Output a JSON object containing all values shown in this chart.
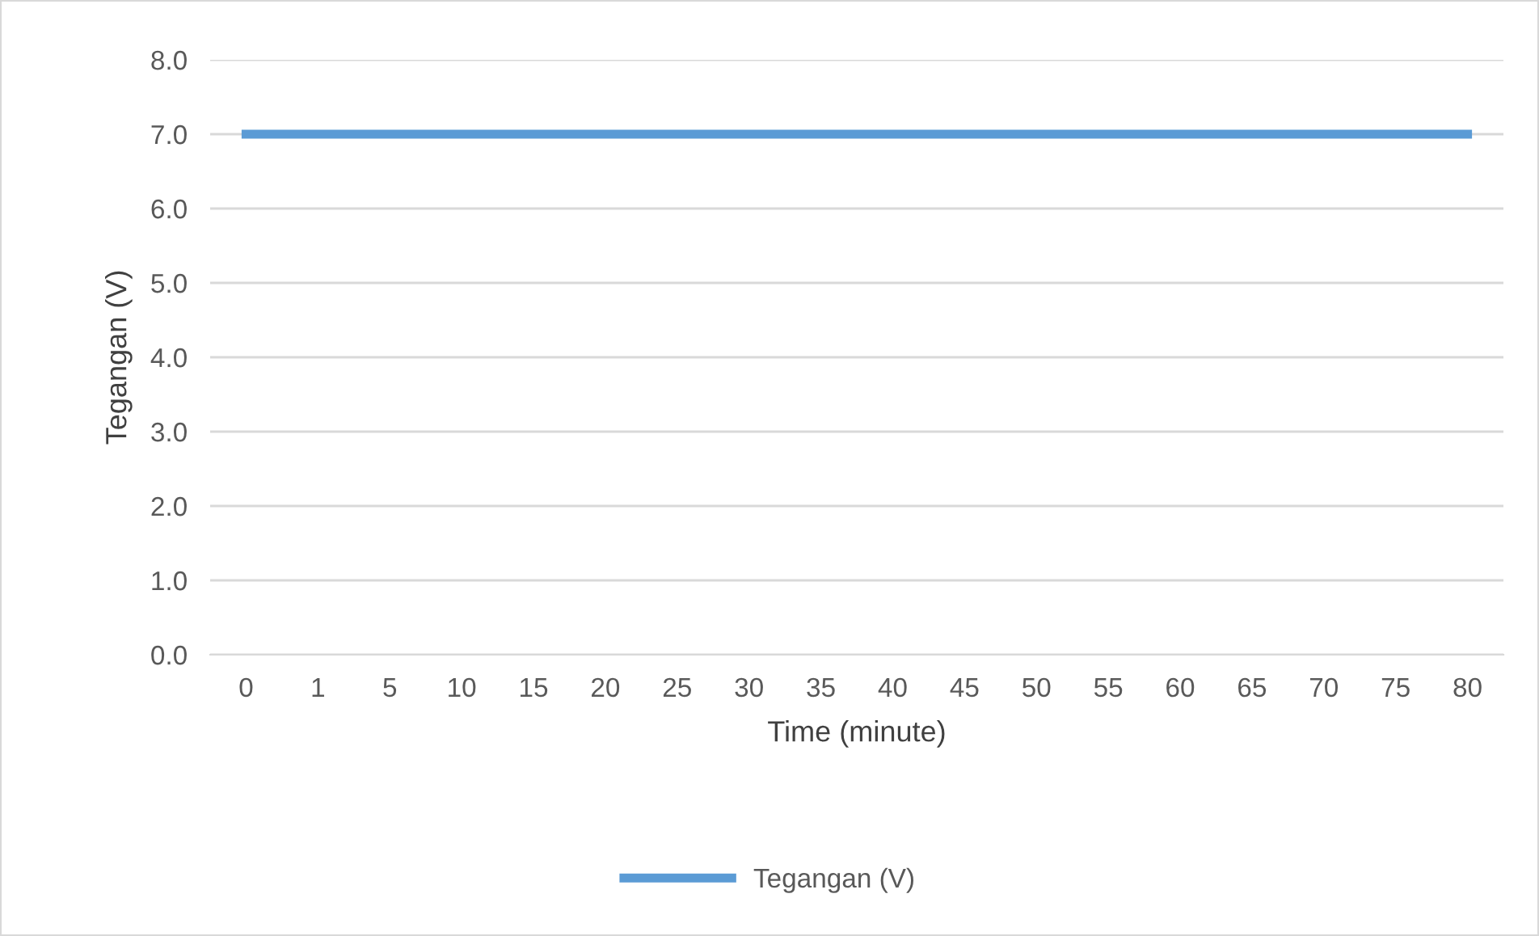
{
  "chart_data": {
    "type": "line",
    "xlabel": "Time (minute)",
    "ylabel": "Tegangan (V)",
    "categories": [
      "0",
      "1",
      "5",
      "10",
      "15",
      "20",
      "25",
      "30",
      "35",
      "40",
      "45",
      "50",
      "55",
      "60",
      "65",
      "70",
      "75",
      "80"
    ],
    "series": [
      {
        "name": "Tegangan (V)",
        "color": "#5b9bd5",
        "values": [
          7.0,
          7.0,
          7.0,
          7.0,
          7.0,
          7.0,
          7.0,
          7.0,
          7.0,
          7.0,
          7.0,
          7.0,
          7.0,
          7.0,
          7.0,
          7.0,
          7.0,
          7.0
        ]
      }
    ],
    "ylim": [
      0,
      8
    ],
    "yticks": [
      {
        "value": 0,
        "label": "0.0"
      },
      {
        "value": 1,
        "label": "1.0"
      },
      {
        "value": 2,
        "label": "2.0"
      },
      {
        "value": 3,
        "label": "3.0"
      },
      {
        "value": 4,
        "label": "4.0"
      },
      {
        "value": 5,
        "label": "5.0"
      },
      {
        "value": 6,
        "label": "6.0"
      },
      {
        "value": 7,
        "label": "7.0"
      },
      {
        "value": 8,
        "label": "8.0"
      }
    ],
    "grid": "y",
    "legend": "bottom",
    "marker": "none",
    "line_style": "solid"
  }
}
